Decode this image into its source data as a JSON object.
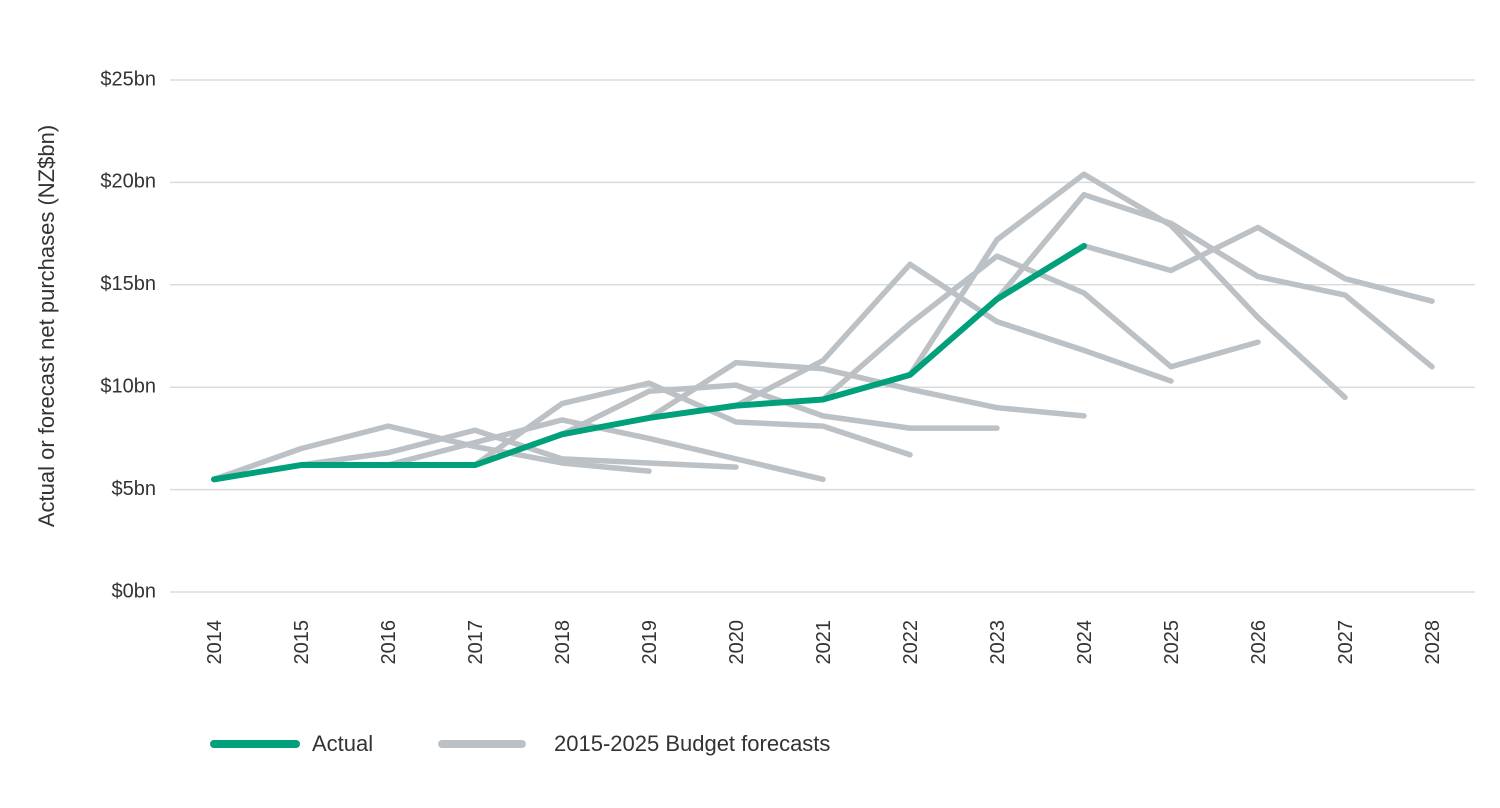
{
  "chart_data": {
    "type": "line",
    "title": "",
    "ylabel": "Actual or forecast net purchases (NZ$bn)",
    "xlabel": "",
    "x": [
      2014,
      2015,
      2016,
      2017,
      2018,
      2019,
      2020,
      2021,
      2022,
      2023,
      2024,
      2025,
      2026,
      2027,
      2028
    ],
    "ylim": [
      0,
      25
    ],
    "y_ticks": [
      0,
      5,
      10,
      15,
      20,
      25
    ],
    "y_tick_labels": [
      "$0bn",
      "$5bn",
      "$10bn",
      "$15bn",
      "$20bn",
      "$25bn"
    ],
    "x_tick_labels": [
      "2014",
      "2015",
      "2016",
      "2017",
      "2018",
      "2019",
      "2020",
      "2021",
      "2022",
      "2023",
      "2024",
      "2025",
      "2026",
      "2027",
      "2028"
    ],
    "grid": "horizontal",
    "legend_position": "bottom-left",
    "legend": [
      {
        "label": "Actual",
        "color": "#00A07A"
      },
      {
        "label": "2015-2025 Budget forecasts",
        "color": "#BCC1C6"
      }
    ],
    "actual": {
      "color": "#00A07A",
      "x": [
        2014,
        2015,
        2016,
        2017,
        2018,
        2019,
        2020,
        2021,
        2022,
        2023,
        2024
      ],
      "values": [
        5.5,
        6.2,
        6.2,
        6.2,
        7.7,
        8.5,
        9.1,
        9.4,
        10.6,
        14.3,
        16.9
      ]
    },
    "forecasts_color": "#BCC1C6",
    "forecasts": [
      {
        "x": [
          2014,
          2015,
          2016,
          2017,
          2018,
          2019
        ],
        "values": [
          5.5,
          7.0,
          8.1,
          7.1,
          6.3,
          5.9
        ]
      },
      {
        "x": [
          2015,
          2016,
          2017,
          2018,
          2019,
          2020
        ],
        "values": [
          6.2,
          6.8,
          7.9,
          6.5,
          6.3,
          6.1
        ]
      },
      {
        "x": [
          2016,
          2017,
          2018,
          2019,
          2020,
          2021
        ],
        "values": [
          6.2,
          7.3,
          8.4,
          7.5,
          6.5,
          5.5
        ]
      },
      {
        "x": [
          2017,
          2018,
          2019,
          2020,
          2021,
          2022
        ],
        "values": [
          6.2,
          9.2,
          10.2,
          8.3,
          8.1,
          6.7
        ]
      },
      {
        "x": [
          2018,
          2019,
          2020,
          2021,
          2022,
          2023
        ],
        "values": [
          7.7,
          9.8,
          10.1,
          8.6,
          8.0,
          8.0
        ]
      },
      {
        "x": [
          2019,
          2020,
          2021,
          2022,
          2023,
          2024
        ],
        "values": [
          8.5,
          11.2,
          10.9,
          9.9,
          9.0,
          8.6
        ]
      },
      {
        "x": [
          2020,
          2021,
          2022,
          2023,
          2024,
          2025
        ],
        "values": [
          9.1,
          11.3,
          16.0,
          13.2,
          11.8,
          10.3
        ]
      },
      {
        "x": [
          2021,
          2022,
          2023,
          2024,
          2025,
          2026
        ],
        "values": [
          9.4,
          13.1,
          16.4,
          14.6,
          11.0,
          12.2
        ]
      },
      {
        "x": [
          2022,
          2023,
          2024,
          2025,
          2026,
          2027
        ],
        "values": [
          10.6,
          17.2,
          20.4,
          17.9,
          13.4,
          9.5
        ]
      },
      {
        "x": [
          2023,
          2024,
          2025,
          2026,
          2027,
          2028
        ],
        "values": [
          14.3,
          19.4,
          18.0,
          15.4,
          14.5,
          11.0
        ]
      },
      {
        "x": [
          2024,
          2025,
          2026,
          2027,
          2028
        ],
        "values": [
          16.9,
          15.7,
          17.8,
          15.3,
          14.2
        ]
      }
    ]
  }
}
